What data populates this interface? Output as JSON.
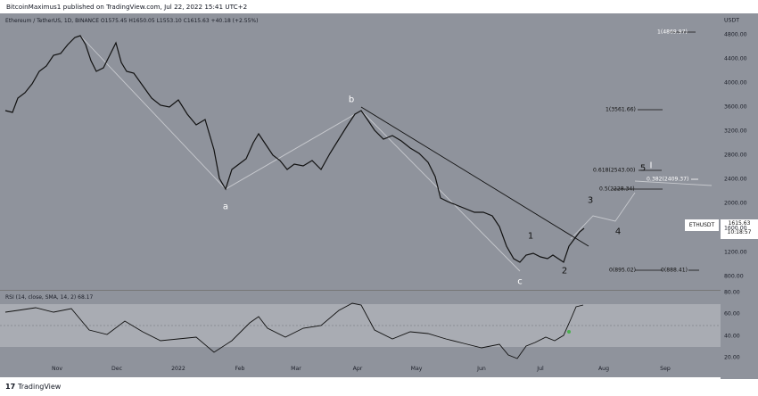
{
  "header": {
    "text": "BitcoinMaximus1 published on TradingView.com, Jul 22, 2022 15:41 UTC+2"
  },
  "legend": {
    "text": "Ethereum / TetherUS, 1D, BINANCE O1575.45 H1650.05 L1553.10 C1615.63 +40.18 (+2.55%)"
  },
  "rsi_legend": {
    "text": "RSI (14, close, SMA, 14, 2) 68.17"
  },
  "symbol_tag": "ETHUSDT",
  "price": {
    "value": "1615.63",
    "countdown": "10:18:57"
  },
  "currency": "USDT",
  "price_axis": [
    "4800.00",
    "4400.00",
    "4000.00",
    "3600.00",
    "3200.00",
    "2800.00",
    "2400.00",
    "2000.00",
    "1600.00",
    "1200.00",
    "800.00"
  ],
  "rsi_axis": [
    "80.00",
    "60.00",
    "40.00",
    "20.00"
  ],
  "time_axis": [
    "Nov",
    "Dec",
    "2022",
    "Feb",
    "Mar",
    "Apr",
    "May",
    "Jun",
    "Jul",
    "Aug",
    "Sep"
  ],
  "waves": {
    "a": "a",
    "b": "b",
    "c": "c",
    "w1": "1",
    "w2": "2",
    "w3": "3",
    "w4": "4",
    "w5": "5"
  },
  "fib": {
    "f1": "1(4869.97)",
    "f2": "1(3561.66)",
    "f3": "0.618(2543.00)",
    "f4": "0.5(2228.34)",
    "f5": "0.382(2409.37)",
    "f6": "0(895.02)",
    "f7": "0(888.41)"
  },
  "footer": {
    "logo": "17",
    "brand": "TradingView"
  }
}
